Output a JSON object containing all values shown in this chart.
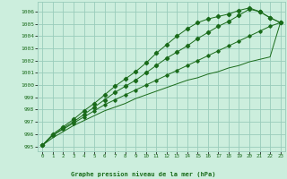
{
  "title": "Graphe pression niveau de la mer (hPa)",
  "bg_color": "#cceedd",
  "grid_color": "#99ccbb",
  "line_color": "#1a6b1a",
  "xlim": [
    -0.5,
    23.5
  ],
  "ylim": [
    994.6,
    1006.8
  ],
  "xticks": [
    0,
    1,
    2,
    3,
    4,
    5,
    6,
    7,
    8,
    9,
    10,
    11,
    12,
    13,
    14,
    15,
    16,
    17,
    18,
    19,
    20,
    21,
    22,
    23
  ],
  "yticks": [
    995,
    996,
    997,
    998,
    999,
    1000,
    1001,
    1002,
    1003,
    1004,
    1005,
    1006
  ],
  "series": [
    [
      995.1,
      996.0,
      996.6,
      997.2,
      997.9,
      998.5,
      999.2,
      999.9,
      1000.5,
      1001.1,
      1001.8,
      1002.6,
      1003.3,
      1004.0,
      1004.6,
      1005.1,
      1005.4,
      1005.6,
      1005.8,
      1006.1,
      1006.3,
      1006.0,
      1005.5,
      1005.1
    ],
    [
      995.1,
      995.9,
      996.5,
      997.0,
      997.6,
      998.2,
      998.8,
      999.4,
      999.9,
      1000.4,
      1001.0,
      1001.6,
      1002.2,
      1002.7,
      1003.2,
      1003.8,
      1004.3,
      1004.8,
      1005.2,
      1005.7,
      1006.2,
      1006.0,
      1005.5,
      1005.1
    ],
    [
      995.1,
      995.9,
      996.4,
      996.9,
      997.4,
      997.9,
      998.4,
      998.8,
      999.2,
      999.6,
      1000.0,
      1000.4,
      1000.8,
      1001.2,
      1001.6,
      1002.0,
      1002.4,
      1002.8,
      1003.2,
      1003.6,
      1004.0,
      1004.4,
      1004.8,
      1005.1
    ],
    [
      995.1,
      995.7,
      996.2,
      996.7,
      997.1,
      997.5,
      997.9,
      998.2,
      998.5,
      998.9,
      999.2,
      999.5,
      999.8,
      1000.1,
      1000.4,
      1000.6,
      1000.9,
      1001.1,
      1001.4,
      1001.6,
      1001.9,
      1002.1,
      1002.3,
      1005.1
    ]
  ]
}
